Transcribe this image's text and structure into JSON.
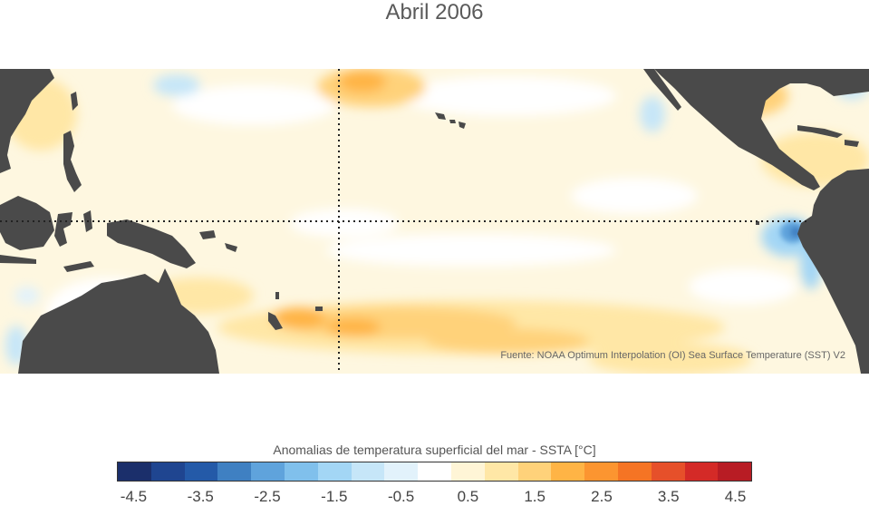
{
  "title": "Abril 2006",
  "source": "Fuente: NOAA Optimum Interpolation (OI) Sea Surface Temperature (SST) V2",
  "colorbar": {
    "label": "Anomalias de temperatura superficial del mar - SSTA  [°C]",
    "ticks": [
      "-4.5",
      "-3.5",
      "-2.5",
      "-1.5",
      "-0.5",
      "0.5",
      "1.5",
      "2.5",
      "3.5",
      "4.5"
    ],
    "colors": [
      "#1b2f6b",
      "#1f4590",
      "#245aa8",
      "#3f80c2",
      "#5fa3dc",
      "#80c0ec",
      "#a3d6f5",
      "#c6e6f8",
      "#e2f2fb",
      "#ffffff",
      "#fff5d6",
      "#ffe7a6",
      "#ffd27a",
      "#ffb445",
      "#fc9530",
      "#f57424",
      "#e6502a",
      "#d42a27",
      "#b81c24"
    ]
  },
  "colors": {
    "land": "#4a4a4a",
    "ocean_base": "#fef7e0",
    "grid": "#222222"
  }
}
